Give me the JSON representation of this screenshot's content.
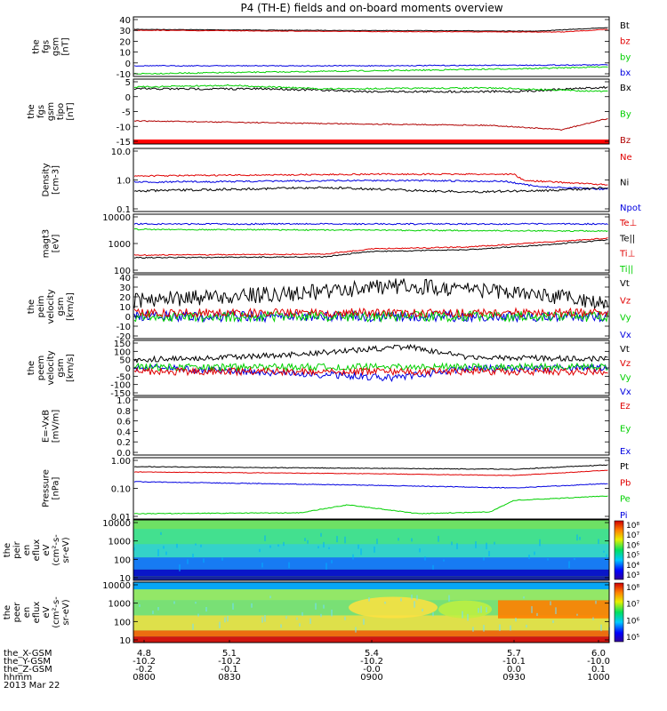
{
  "title": "P4 (TH-E) fields and on-board moments overview",
  "colors": {
    "black": "#000000",
    "red": "#e00000",
    "green": "#00d000",
    "blue": "#0000e0",
    "darkred": "#b00000"
  },
  "panels": [
    {
      "id": "fgs-gsm",
      "ylabel": [
        "the",
        "fgs",
        "gsm",
        "[nT]"
      ],
      "yticks": [
        "40",
        "30",
        "20",
        "10",
        "0",
        "-10"
      ],
      "legend": [
        {
          "t": "Bt",
          "c": "black"
        },
        {
          "t": "bz",
          "c": "red"
        },
        {
          "t": "by",
          "c": "green"
        },
        {
          "t": "bx",
          "c": "blue"
        }
      ]
    },
    {
      "id": "fgs-gsm-tip",
      "ylabel": [
        "the",
        "fgs",
        "gsm",
        "tipo",
        "[nT]"
      ],
      "yticks": [
        "5",
        "0",
        "-5",
        "-10",
        "-15"
      ],
      "legend": [
        {
          "t": "Bx",
          "c": "black"
        },
        {
          "t": "By",
          "c": "green"
        },
        {
          "t": "Bz",
          "c": "darkred"
        }
      ]
    },
    {
      "id": "density",
      "ylabel": [
        "Density",
        "[cm-3]"
      ],
      "yticks": [
        "10.0",
        "1.0",
        "0.1"
      ],
      "legend": [
        {
          "t": "Ne",
          "c": "red"
        },
        {
          "t": "Ni",
          "c": "black"
        },
        {
          "t": "Npot",
          "c": "blue"
        }
      ]
    },
    {
      "id": "temperature",
      "ylabel": [
        "magt3",
        "[eV]"
      ],
      "yticks": [
        "10000",
        "1000",
        "100"
      ],
      "legend": [
        {
          "t": "Te⊥",
          "c": "red"
        },
        {
          "t": "Te||",
          "c": "black"
        },
        {
          "t": "Ti⊥",
          "c": "red"
        },
        {
          "t": "Ti||",
          "c": "green"
        }
      ]
    },
    {
      "id": "peim-velocity",
      "ylabel": [
        "the",
        "peim",
        "velocity",
        "gsm",
        "[km/s]"
      ],
      "yticks": [
        "40",
        "30",
        "20",
        "10",
        "0",
        "-10",
        "-20"
      ],
      "legend": [
        {
          "t": "Vt",
          "c": "black"
        },
        {
          "t": "Vz",
          "c": "red"
        },
        {
          "t": "Vy",
          "c": "green"
        },
        {
          "t": "Vx",
          "c": "blue"
        }
      ]
    },
    {
      "id": "peem-velocity",
      "ylabel": [
        "the",
        "peem",
        "velocity",
        "gsm",
        "[km/s]"
      ],
      "yticks": [
        "150",
        "100",
        "50",
        "0",
        "-50",
        "-100",
        "-150"
      ],
      "legend": [
        {
          "t": "Vt",
          "c": "black"
        },
        {
          "t": "Vz",
          "c": "red"
        },
        {
          "t": "Vy",
          "c": "green"
        },
        {
          "t": "Vx",
          "c": "blue"
        }
      ]
    },
    {
      "id": "exb",
      "ylabel": [
        "E=-VxB",
        "[mV/m]"
      ],
      "yticks": [
        "1.0",
        "0.8",
        "0.6",
        "0.4",
        "0.2",
        "0.0"
      ],
      "legend": [
        {
          "t": "Ez",
          "c": "red"
        },
        {
          "t": "Ey",
          "c": "green"
        },
        {
          "t": "Ex",
          "c": "blue"
        }
      ]
    },
    {
      "id": "pressure",
      "ylabel": [
        "Pressure",
        "[nPa]"
      ],
      "yticks": [
        "1.00",
        "0.10",
        "0.01"
      ],
      "legend": [
        {
          "t": "Pt",
          "c": "black"
        },
        {
          "t": "Pb",
          "c": "red"
        },
        {
          "t": "Pe",
          "c": "green"
        },
        {
          "t": "Pi",
          "c": "blue"
        }
      ]
    },
    {
      "id": "peir-spec",
      "ylabel": [
        "the",
        "peir",
        "en",
        "eflux",
        "eV",
        "(cm²-s-",
        "sr-eV)"
      ],
      "yticks": [
        "10000",
        "1000",
        "100",
        "10"
      ],
      "colorbar": [
        "10⁸",
        "10⁷",
        "10⁶",
        "10⁵",
        "10⁴",
        "10³"
      ]
    },
    {
      "id": "peer-spec",
      "ylabel": [
        "the",
        "peer",
        "en",
        "eflux",
        "eV",
        "(cm²-s-",
        "sr-eV)"
      ],
      "yticks": [
        "10000",
        "1000",
        "100",
        "10"
      ],
      "colorbar": [
        "10⁸",
        "10⁷",
        "10⁶",
        "10⁵"
      ]
    }
  ],
  "footer": {
    "row_labels": [
      "the_X-GSM",
      "the_Y-GSM",
      "the_Z-GSM",
      "hhmm",
      "2013 Mar 22"
    ],
    "columns": [
      {
        "x_gsm": "4.8",
        "y_gsm": "-10.2",
        "z_gsm": "-0.2",
        "hhmm": "0800"
      },
      {
        "x_gsm": "5.1",
        "y_gsm": "-10.2",
        "z_gsm": "-0.1",
        "hhmm": "0830"
      },
      {
        "x_gsm": "5.4",
        "y_gsm": "-10.2",
        "z_gsm": "-0.0",
        "hhmm": "0900"
      },
      {
        "x_gsm": "5.7",
        "y_gsm": "-10.1",
        "z_gsm": "0.0",
        "hhmm": "0930"
      },
      {
        "x_gsm": "6.0",
        "y_gsm": "-10.0",
        "z_gsm": "0.1",
        "hhmm": "1000"
      }
    ]
  },
  "chart_data": {
    "type": "line",
    "title": "P4 (TH-E) fields and on-board moments overview",
    "x": [
      "0800",
      "0830",
      "0900",
      "0930",
      "1000"
    ],
    "xlabel": "hhmm",
    "date": "2013 Mar 22",
    "panels": [
      {
        "name": "the fgs gsm [nT]",
        "ylim": [
          -12,
          42
        ],
        "series": [
          {
            "name": "Bt",
            "values": [
              30,
              30,
              29,
              29,
              31
            ]
          },
          {
            "name": "bz",
            "values": [
              29,
              28,
              28,
              27,
              29
            ]
          },
          {
            "name": "by",
            "values": [
              -9,
              -7,
              -5,
              -4,
              -2
            ]
          },
          {
            "name": "bx",
            "values": [
              -1,
              -1,
              -1,
              -1,
              -1
            ]
          }
        ]
      },
      {
        "name": "the fgs gsm tipo [nT]",
        "ylim": [
          -18,
          6
        ],
        "series": [
          {
            "name": "Bx",
            "values": [
              3,
              3,
              1,
              2,
              3
            ]
          },
          {
            "name": "By",
            "values": [
              4,
              4,
              3,
              2,
              2
            ]
          },
          {
            "name": "Bz",
            "values": [
              -9,
              -10,
              -11,
              -11,
              -7
            ]
          }
        ]
      },
      {
        "name": "Density [cm-3]",
        "scale": "log",
        "ylim": [
          0.1,
          10
        ],
        "series": [
          {
            "name": "Ne",
            "values": [
              1.6,
              1.8,
              2.0,
              2.0,
              1.0
            ]
          },
          {
            "name": "Ni",
            "values": [
              1.2,
              1.3,
              1.3,
              1.3,
              0.7
            ]
          },
          {
            "name": "Npot",
            "values": [
              0.45,
              0.5,
              0.55,
              0.4,
              0.5
            ]
          }
        ]
      },
      {
        "name": "magt3 [eV]",
        "scale": "log",
        "ylim": [
          50,
          10000
        ],
        "series": [
          {
            "name": "Te⊥",
            "values": [
              90,
              110,
              150,
              250,
              700
            ]
          },
          {
            "name": "Te||",
            "values": [
              70,
              90,
              130,
              200,
              550
            ]
          },
          {
            "name": "Ti⊥",
            "values": [
              2600,
              2700,
              2500,
              2400,
              2500
            ]
          },
          {
            "name": "Ti||",
            "values": [
              2000,
              2000,
              1900,
              1800,
              1900
            ]
          }
        ]
      },
      {
        "name": "the peim velocity gsm [km/s]",
        "ylim": [
          -20,
          40
        ],
        "series": [
          {
            "name": "Vt",
            "values": [
              12,
              18,
              25,
              20,
              12
            ]
          },
          {
            "name": "Vz",
            "values": [
              3,
              2,
              2,
              2,
              2
            ]
          },
          {
            "name": "Vy",
            "values": [
              3,
              2,
              -2,
              1,
              1
            ]
          },
          {
            "name": "Vx",
            "values": [
              1,
              0,
              -2,
              0,
              0
            ]
          }
        ]
      },
      {
        "name": "the peem velocity gsm [km/s]",
        "ylim": [
          -150,
          150
        ],
        "series": [
          {
            "name": "Vt",
            "values": [
              40,
              45,
              60,
              50,
              35
            ]
          },
          {
            "name": "Vz",
            "values": [
              -15,
              -15,
              -20,
              -15,
              -15
            ]
          },
          {
            "name": "Vy",
            "values": [
              5,
              5,
              0,
              -5,
              0
            ]
          },
          {
            "name": "Vx",
            "values": [
              -5,
              -10,
              -40,
              -5,
              -5
            ]
          }
        ]
      },
      {
        "name": "E=-VxB [mV/m]",
        "ylim": [
          0,
          1
        ],
        "series": []
      },
      {
        "name": "Pressure [nPa]",
        "scale": "log",
        "ylim": [
          0.01,
          1
        ],
        "series": [
          {
            "name": "Pt",
            "values": [
              0.55,
              0.58,
              0.57,
              0.52,
              0.6
            ]
          },
          {
            "name": "Pb",
            "values": [
              0.38,
              0.36,
              0.33,
              0.3,
              0.38
            ]
          },
          {
            "name": "Pe",
            "values": [
              0.012,
              0.013,
              0.025,
              0.01,
              0.05
            ]
          },
          {
            "name": "Pi",
            "values": [
              0.17,
              0.19,
              0.17,
              0.12,
              0.18
            ]
          }
        ]
      },
      {
        "name": "the peir en eflux",
        "type": "heatmap",
        "ylim": [
          10,
          20000
        ]
      },
      {
        "name": "the peer en eflux",
        "type": "heatmap",
        "ylim": [
          10,
          20000
        ]
      }
    ]
  }
}
